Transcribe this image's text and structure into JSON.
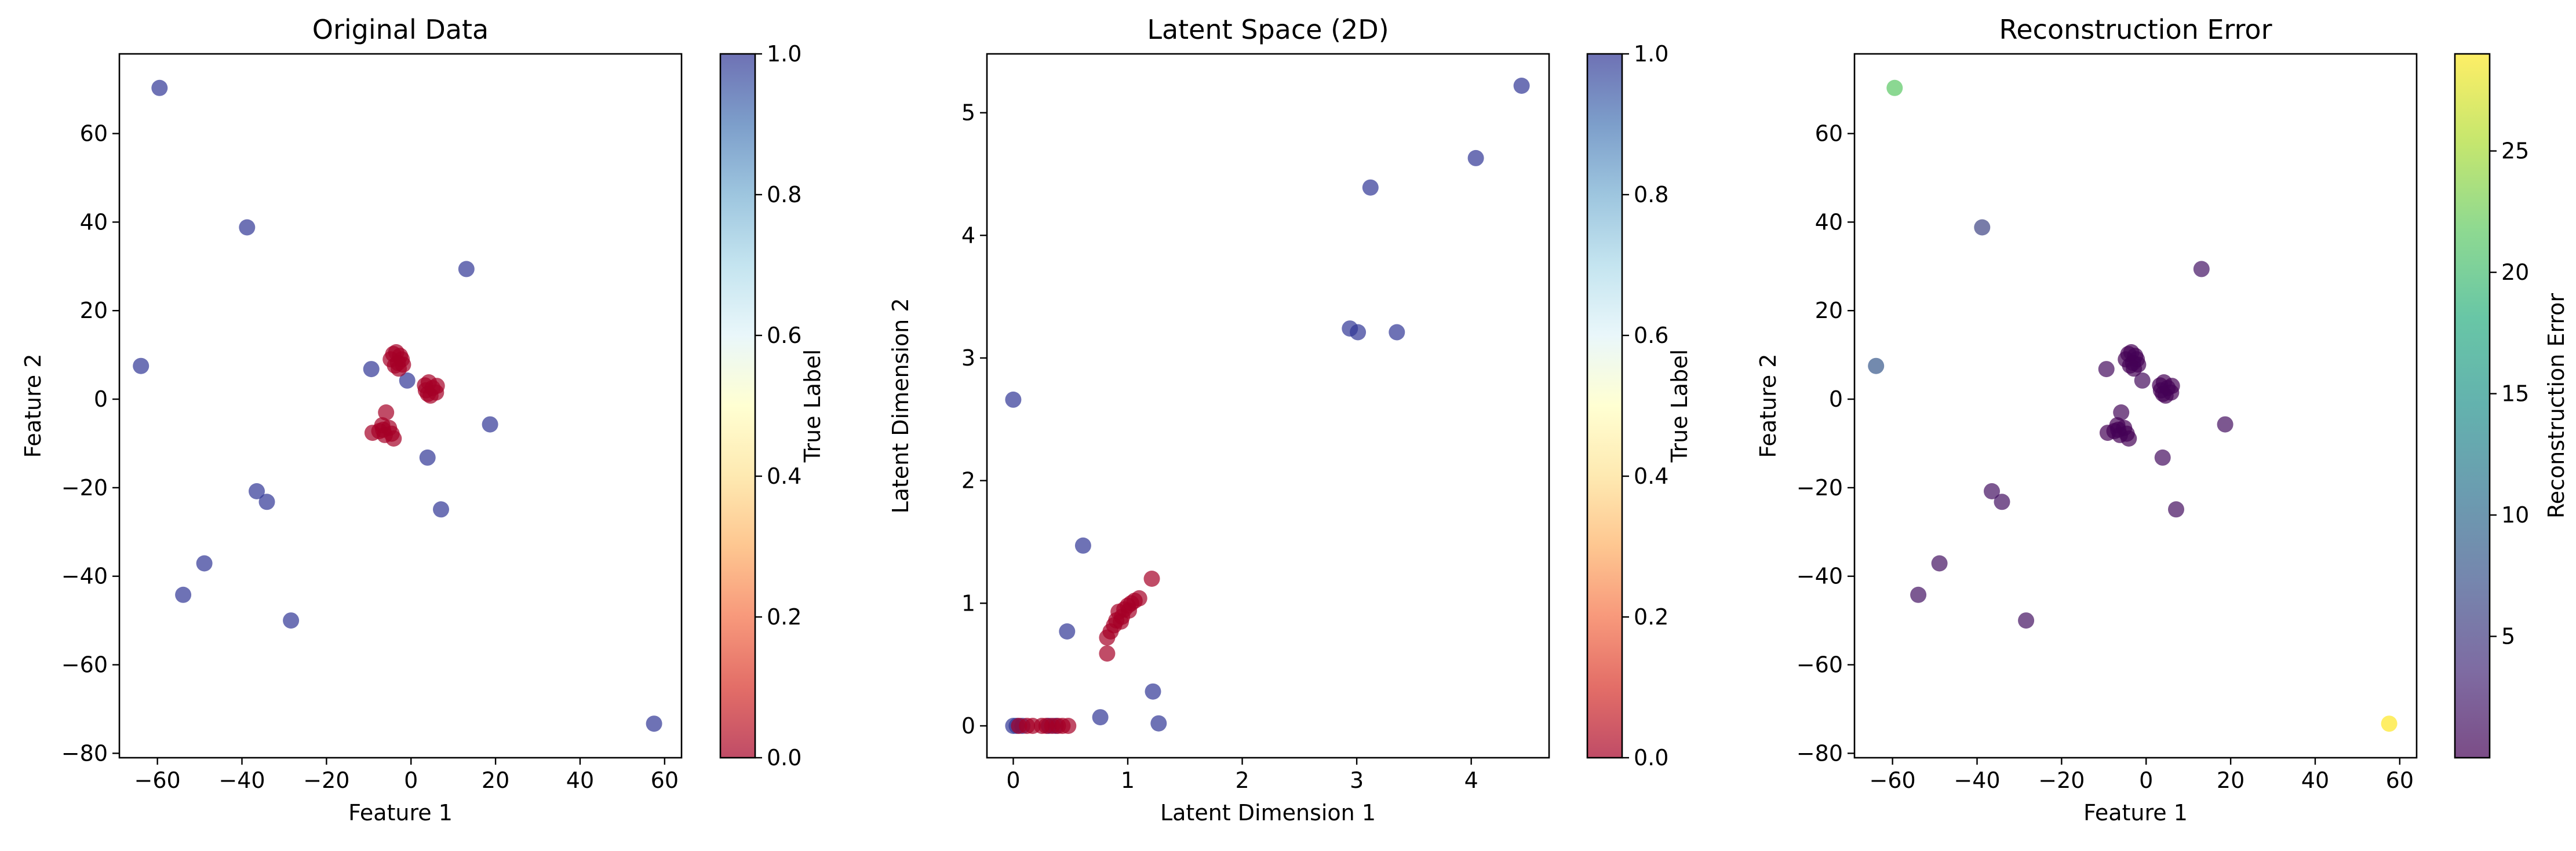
{
  "chart_data": [
    {
      "type": "scatter",
      "title": "Original Data",
      "xlabel": "Feature 1",
      "ylabel": "Feature 2",
      "xlim": [
        -69,
        64
      ],
      "ylim": [
        -81,
        78
      ],
      "xticks": [
        -60,
        -40,
        -20,
        0,
        20,
        40,
        60
      ],
      "yticks": [
        -80,
        -60,
        -40,
        -20,
        0,
        20,
        40,
        60
      ],
      "xtick_labels": [
        "−60",
        "−40",
        "−20",
        "0",
        "20",
        "40",
        "60"
      ],
      "ytick_labels": [
        "−80",
        "−60",
        "−40",
        "−20",
        "0",
        "20",
        "40",
        "60"
      ],
      "colorbar": {
        "label": "True Label",
        "range": [
          0.0,
          1.0
        ],
        "ticks": [
          0.0,
          0.2,
          0.4,
          0.6,
          0.8,
          1.0
        ],
        "tick_labels": [
          "0.0",
          "0.2",
          "0.4",
          "0.6",
          "0.8",
          "1.0"
        ],
        "colormap": "RdYlBu"
      },
      "points": [
        {
          "x": -59.5,
          "y": 70.3,
          "label": 1
        },
        {
          "x": -38.8,
          "y": 38.8,
          "label": 1
        },
        {
          "x": 13.1,
          "y": 29.4,
          "label": 1
        },
        {
          "x": -63.9,
          "y": 7.5,
          "label": 1
        },
        {
          "x": -9.4,
          "y": 6.8,
          "label": 1
        },
        {
          "x": -0.9,
          "y": 4.2,
          "label": 1
        },
        {
          "x": 18.7,
          "y": -5.7,
          "label": 1
        },
        {
          "x": 3.9,
          "y": -13.2,
          "label": 1
        },
        {
          "x": -36.5,
          "y": -20.8,
          "label": 1
        },
        {
          "x": -34.1,
          "y": -23.2,
          "label": 1
        },
        {
          "x": 7.1,
          "y": -24.9,
          "label": 1
        },
        {
          "x": -48.9,
          "y": -37.1,
          "label": 1
        },
        {
          "x": -53.9,
          "y": -44.2,
          "label": 1
        },
        {
          "x": -28.4,
          "y": -50.0,
          "label": 1
        },
        {
          "x": 57.5,
          "y": -73.3,
          "label": 1
        },
        {
          "x": -4.2,
          "y": 10.2,
          "label": 0
        },
        {
          "x": -2.6,
          "y": 9.8,
          "label": 0
        },
        {
          "x": -4.8,
          "y": 9.0,
          "label": 0
        },
        {
          "x": -3.1,
          "y": 8.2,
          "label": 0
        },
        {
          "x": -2.2,
          "y": 9.0,
          "label": 0
        },
        {
          "x": -3.8,
          "y": 7.6,
          "label": 0
        },
        {
          "x": -1.9,
          "y": 7.8,
          "label": 0
        },
        {
          "x": -3.5,
          "y": 10.6,
          "label": 0
        },
        {
          "x": -2.9,
          "y": 6.9,
          "label": 0
        },
        {
          "x": 4.2,
          "y": 3.8,
          "label": 0
        },
        {
          "x": 5.1,
          "y": 2.5,
          "label": 0
        },
        {
          "x": 3.5,
          "y": 2.0,
          "label": 0
        },
        {
          "x": 5.9,
          "y": 1.5,
          "label": 0
        },
        {
          "x": 4.6,
          "y": 0.8,
          "label": 0
        },
        {
          "x": 3.3,
          "y": 3.1,
          "label": 0
        },
        {
          "x": 6.1,
          "y": 3.0,
          "label": 0
        },
        {
          "x": 4.0,
          "y": 1.2,
          "label": 0
        },
        {
          "x": -5.9,
          "y": -3.0,
          "label": 0
        },
        {
          "x": -6.8,
          "y": -5.9,
          "label": 0
        },
        {
          "x": -5.2,
          "y": -6.5,
          "label": 0
        },
        {
          "x": -7.5,
          "y": -7.2,
          "label": 0
        },
        {
          "x": -4.6,
          "y": -7.8,
          "label": 0
        },
        {
          "x": -6.2,
          "y": -8.1,
          "label": 0
        },
        {
          "x": -9.1,
          "y": -7.6,
          "label": 0
        },
        {
          "x": -4.1,
          "y": -8.9,
          "label": 0
        },
        {
          "x": -6.6,
          "y": -6.9,
          "label": 0
        }
      ]
    },
    {
      "type": "scatter",
      "title": "Latent Space (2D)",
      "xlabel": "Latent Dimension 1",
      "ylabel": "Latent Dimension 2",
      "xlim": [
        -0.23,
        4.68
      ],
      "ylim": [
        -0.26,
        5.48
      ],
      "xticks": [
        0,
        1,
        2,
        3,
        4
      ],
      "yticks": [
        0,
        1,
        2,
        3,
        4,
        5
      ],
      "xtick_labels": [
        "0",
        "1",
        "2",
        "3",
        "4"
      ],
      "ytick_labels": [
        "0",
        "1",
        "2",
        "3",
        "4",
        "5"
      ],
      "colorbar": {
        "label": "True Label",
        "range": [
          0.0,
          1.0
        ],
        "ticks": [
          0.0,
          0.2,
          0.4,
          0.6,
          0.8,
          1.0
        ],
        "tick_labels": [
          "0.0",
          "0.2",
          "0.4",
          "0.6",
          "0.8",
          "1.0"
        ],
        "colormap": "RdYlBu"
      },
      "points": [
        {
          "x": 4.44,
          "y": 5.22,
          "label": 1
        },
        {
          "x": 4.04,
          "y": 4.63,
          "label": 1
        },
        {
          "x": 3.12,
          "y": 4.39,
          "label": 1
        },
        {
          "x": 2.94,
          "y": 3.24,
          "label": 1
        },
        {
          "x": 3.01,
          "y": 3.21,
          "label": 1
        },
        {
          "x": 3.35,
          "y": 3.21,
          "label": 1
        },
        {
          "x": 0.0,
          "y": 2.66,
          "label": 1
        },
        {
          "x": 0.61,
          "y": 1.47,
          "label": 1
        },
        {
          "x": 0.47,
          "y": 0.77,
          "label": 1
        },
        {
          "x": 1.22,
          "y": 0.28,
          "label": 1
        },
        {
          "x": 0.76,
          "y": 0.07,
          "label": 1
        },
        {
          "x": 1.27,
          "y": 0.02,
          "label": 1
        },
        {
          "x": 0.0,
          "y": 0.0,
          "label": 1
        },
        {
          "x": 0.03,
          "y": 0.0,
          "label": 1
        },
        {
          "x": 0.08,
          "y": 0.0,
          "label": 1
        },
        {
          "x": 0.31,
          "y": 0.0,
          "label": 1
        },
        {
          "x": 0.37,
          "y": 0.0,
          "label": 1
        },
        {
          "x": 0.05,
          "y": 0.0,
          "label": 0
        },
        {
          "x": 0.12,
          "y": 0.0,
          "label": 0
        },
        {
          "x": 0.17,
          "y": 0.0,
          "label": 0
        },
        {
          "x": 0.25,
          "y": 0.0,
          "label": 0
        },
        {
          "x": 0.29,
          "y": 0.0,
          "label": 0
        },
        {
          "x": 0.34,
          "y": 0.0,
          "label": 0
        },
        {
          "x": 0.39,
          "y": 0.0,
          "label": 0
        },
        {
          "x": 0.43,
          "y": 0.0,
          "label": 0
        },
        {
          "x": 0.48,
          "y": 0.0,
          "label": 0
        },
        {
          "x": 1.21,
          "y": 1.2,
          "label": 0
        },
        {
          "x": 0.82,
          "y": 0.59,
          "label": 0
        },
        {
          "x": 0.82,
          "y": 0.72,
          "label": 0
        },
        {
          "x": 0.85,
          "y": 0.77,
          "label": 0
        },
        {
          "x": 0.88,
          "y": 0.82,
          "label": 0
        },
        {
          "x": 0.9,
          "y": 0.86,
          "label": 0
        },
        {
          "x": 0.92,
          "y": 0.93,
          "label": 0
        },
        {
          "x": 0.95,
          "y": 0.89,
          "label": 0
        },
        {
          "x": 0.97,
          "y": 0.95,
          "label": 0
        },
        {
          "x": 1.0,
          "y": 0.98,
          "label": 0
        },
        {
          "x": 1.03,
          "y": 1.0,
          "label": 0
        },
        {
          "x": 1.06,
          "y": 1.02,
          "label": 0
        },
        {
          "x": 1.1,
          "y": 1.04,
          "label": 0
        },
        {
          "x": 0.94,
          "y": 0.85,
          "label": 0
        },
        {
          "x": 1.01,
          "y": 0.94,
          "label": 0
        }
      ]
    },
    {
      "type": "scatter",
      "title": "Reconstruction Error",
      "xlabel": "Feature 1",
      "ylabel": "Feature 2",
      "xlim": [
        -69,
        64
      ],
      "ylim": [
        -81,
        78
      ],
      "xticks": [
        -60,
        -40,
        -20,
        0,
        20,
        40,
        60
      ],
      "yticks": [
        -80,
        -60,
        -40,
        -20,
        0,
        20,
        40,
        60
      ],
      "xtick_labels": [
        "−60",
        "−40",
        "−20",
        "0",
        "20",
        "40",
        "60"
      ],
      "ytick_labels": [
        "−80",
        "−60",
        "−40",
        "−20",
        "0",
        "20",
        "40",
        "60"
      ],
      "colorbar": {
        "label": "Reconstruction Error",
        "range": [
          0.0,
          29.0
        ],
        "ticks": [
          5,
          10,
          15,
          20,
          25
        ],
        "tick_labels": [
          "5",
          "10",
          "15",
          "20",
          "25"
        ],
        "colormap": "viridis"
      },
      "points": [
        {
          "x": -59.5,
          "y": 70.3,
          "error": 21.5
        },
        {
          "x": 57.5,
          "y": -73.3,
          "error": 29.0
        },
        {
          "x": -63.9,
          "y": 7.5,
          "error": 8.0
        },
        {
          "x": -38.8,
          "y": 38.8,
          "error": 6.0
        },
        {
          "x": 13.1,
          "y": 29.4,
          "error": 1.6
        },
        {
          "x": -9.4,
          "y": 6.8,
          "error": 0.9
        },
        {
          "x": -0.9,
          "y": 4.2,
          "error": 0.8
        },
        {
          "x": 18.7,
          "y": -5.7,
          "error": 1.2
        },
        {
          "x": 3.9,
          "y": -13.2,
          "error": 1.0
        },
        {
          "x": -36.5,
          "y": -20.8,
          "error": 1.3
        },
        {
          "x": -34.1,
          "y": -23.2,
          "error": 1.3
        },
        {
          "x": 7.1,
          "y": -24.9,
          "error": 1.1
        },
        {
          "x": -48.9,
          "y": -37.1,
          "error": 1.4
        },
        {
          "x": -53.9,
          "y": -44.2,
          "error": 1.5
        },
        {
          "x": -28.4,
          "y": -50.0,
          "error": 1.4
        },
        {
          "x": -4.2,
          "y": 10.2,
          "error": 0.05
        },
        {
          "x": -2.6,
          "y": 9.8,
          "error": 0.05
        },
        {
          "x": -4.8,
          "y": 9.0,
          "error": 0.05
        },
        {
          "x": -3.1,
          "y": 8.2,
          "error": 0.05
        },
        {
          "x": -2.2,
          "y": 9.0,
          "error": 0.05
        },
        {
          "x": -3.8,
          "y": 7.6,
          "error": 0.05
        },
        {
          "x": -1.9,
          "y": 7.8,
          "error": 0.05
        },
        {
          "x": -3.5,
          "y": 10.6,
          "error": 0.05
        },
        {
          "x": -2.9,
          "y": 6.9,
          "error": 0.05
        },
        {
          "x": 4.2,
          "y": 3.8,
          "error": 0.05
        },
        {
          "x": 5.1,
          "y": 2.5,
          "error": 0.05
        },
        {
          "x": 3.5,
          "y": 2.0,
          "error": 0.05
        },
        {
          "x": 5.9,
          "y": 1.5,
          "error": 0.05
        },
        {
          "x": 4.6,
          "y": 0.8,
          "error": 0.05
        },
        {
          "x": 3.3,
          "y": 3.1,
          "error": 0.05
        },
        {
          "x": 6.1,
          "y": 3.0,
          "error": 0.05
        },
        {
          "x": 4.0,
          "y": 1.2,
          "error": 0.05
        },
        {
          "x": -5.9,
          "y": -3.0,
          "error": 0.6
        },
        {
          "x": -6.8,
          "y": -5.9,
          "error": 0.1
        },
        {
          "x": -5.2,
          "y": -6.5,
          "error": 0.1
        },
        {
          "x": -7.5,
          "y": -7.2,
          "error": 0.1
        },
        {
          "x": -4.6,
          "y": -7.8,
          "error": 0.1
        },
        {
          "x": -6.2,
          "y": -8.1,
          "error": 0.1
        },
        {
          "x": -9.1,
          "y": -7.6,
          "error": 0.1
        },
        {
          "x": -4.1,
          "y": -8.9,
          "error": 0.1
        },
        {
          "x": -6.6,
          "y": -6.9,
          "error": 0.1
        }
      ]
    }
  ]
}
